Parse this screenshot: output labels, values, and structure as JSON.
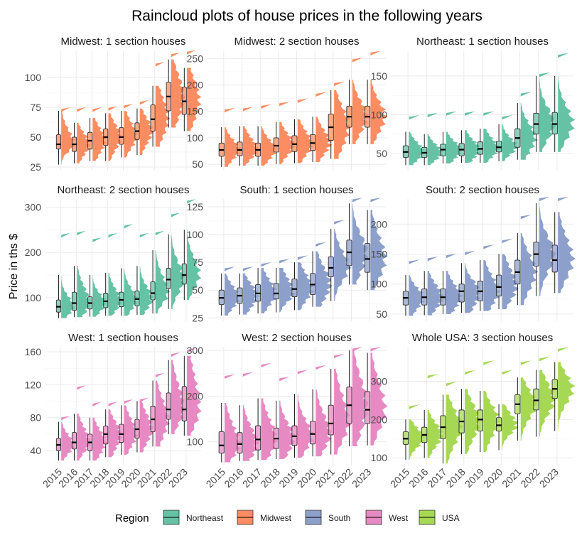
{
  "chart_data": {
    "type": "raincloud",
    "title": "Raincloud plots of house prices in the following years",
    "ylabel": "Price in ths $",
    "xlabel": "",
    "years": [
      "2015",
      "2016",
      "2017",
      "2018",
      "2019",
      "2020",
      "2021",
      "2022",
      "2023"
    ],
    "legend": {
      "title": "Region",
      "position": "bottom",
      "entries": [
        {
          "name": "Northeast",
          "color": "#66c2a5"
        },
        {
          "name": "Midwest",
          "color": "#fc8d62"
        },
        {
          "name": "South",
          "color": "#8da0cb"
        },
        {
          "name": "West",
          "color": "#e78ac3"
        },
        {
          "name": "USA",
          "color": "#a6d854"
        }
      ]
    },
    "panels": [
      {
        "title": "Midwest: 1 section houses",
        "region": "Midwest",
        "color": "#fc8d62",
        "ylim": [
          22,
          122
        ],
        "yticks": [
          25,
          50,
          75,
          100
        ],
        "boxes": [
          {
            "min": 27,
            "q1": 40,
            "median": 44,
            "q3": 52,
            "max": 72,
            "outlier": 72
          },
          {
            "min": 28,
            "q1": 38,
            "median": 44,
            "q3": 50,
            "max": 62,
            "outlier": 72
          },
          {
            "min": 30,
            "q1": 40,
            "median": 47,
            "q3": 54,
            "max": 66,
            "outlier": 72
          },
          {
            "min": 30,
            "q1": 43,
            "median": 50,
            "q3": 57,
            "max": 70,
            "outlier": 73
          },
          {
            "min": 33,
            "q1": 44,
            "median": 50,
            "q3": 58,
            "max": 72,
            "outlier": 75
          },
          {
            "min": 35,
            "q1": 48,
            "median": 55,
            "q3": 62,
            "max": 74,
            "outlier": 78
          },
          {
            "min": 42,
            "q1": 55,
            "median": 65,
            "q3": 77,
            "max": 93,
            "outlier": 110
          },
          {
            "min": 58,
            "q1": 72,
            "median": 84,
            "q3": 96,
            "max": 115,
            "outlier": 118
          },
          {
            "min": 55,
            "q1": 69,
            "median": 80,
            "q3": 92,
            "max": 108,
            "outlier": 120
          }
        ]
      },
      {
        "title": "Midwest: 2 section houses",
        "region": "Midwest",
        "color": "#fc8d62",
        "ylim": [
          38,
          264
        ],
        "yticks": [
          50,
          100,
          150,
          200,
          250
        ],
        "boxes": [
          {
            "min": 45,
            "q1": 65,
            "median": 77,
            "q3": 90,
            "max": 120,
            "outlier": 150
          },
          {
            "min": 47,
            "q1": 66,
            "median": 77,
            "q3": 92,
            "max": 122,
            "outlier": 152
          },
          {
            "min": 47,
            "q1": 65,
            "median": 77,
            "q3": 90,
            "max": 122,
            "outlier": 157
          },
          {
            "min": 50,
            "q1": 73,
            "median": 85,
            "q3": 100,
            "max": 130,
            "outlier": 162
          },
          {
            "min": 52,
            "q1": 74,
            "median": 88,
            "q3": 104,
            "max": 135,
            "outlier": 168
          },
          {
            "min": 54,
            "q1": 76,
            "median": 90,
            "q3": 106,
            "max": 140,
            "outlier": 180
          },
          {
            "min": 60,
            "q1": 95,
            "median": 120,
            "q3": 145,
            "max": 190,
            "outlier": 200
          },
          {
            "min": 88,
            "q1": 120,
            "median": 140,
            "q3": 160,
            "max": 210,
            "outlier": 245
          },
          {
            "min": 88,
            "q1": 120,
            "median": 140,
            "q3": 160,
            "max": 210,
            "outlier": 258
          }
        ]
      },
      {
        "title": "Northeast: 1 section houses",
        "region": "Northeast",
        "color": "#66c2a5",
        "ylim": [
          28,
          182
        ],
        "yticks": [
          50,
          100,
          150
        ],
        "boxes": [
          {
            "min": 35,
            "q1": 45,
            "median": 52,
            "q3": 60,
            "max": 78,
            "outlier": 95
          },
          {
            "min": 35,
            "q1": 45,
            "median": 51,
            "q3": 58,
            "max": 75,
            "outlier": 98
          },
          {
            "min": 37,
            "q1": 47,
            "median": 55,
            "q3": 62,
            "max": 78,
            "outlier": 100
          },
          {
            "min": 38,
            "q1": 47,
            "median": 55,
            "q3": 63,
            "max": 80,
            "outlier": 100
          },
          {
            "min": 38,
            "q1": 49,
            "median": 56,
            "q3": 65,
            "max": 82,
            "outlier": 100
          },
          {
            "min": 40,
            "q1": 52,
            "median": 58,
            "q3": 66,
            "max": 88,
            "outlier": 95
          },
          {
            "min": 42,
            "q1": 58,
            "median": 70,
            "q3": 82,
            "max": 115,
            "outlier": 125
          },
          {
            "min": 52,
            "q1": 75,
            "median": 88,
            "q3": 102,
            "max": 150,
            "outlier": 150
          },
          {
            "min": 52,
            "q1": 75,
            "median": 88,
            "q3": 103,
            "max": 150,
            "outlier": 175
          }
        ]
      },
      {
        "title": "Northeast: 2 section houses",
        "region": "Northeast",
        "color": "#66c2a5",
        "ylim": [
          48,
          318
        ],
        "yticks": [
          100,
          200,
          300
        ],
        "boxes": [
          {
            "min": 55,
            "q1": 68,
            "median": 80,
            "q3": 95,
            "max": 150,
            "outlier": 235
          },
          {
            "min": 57,
            "q1": 72,
            "median": 88,
            "q3": 112,
            "max": 170,
            "outlier": 240
          },
          {
            "min": 58,
            "q1": 75,
            "median": 88,
            "q3": 102,
            "max": 150,
            "outlier": 225
          },
          {
            "min": 60,
            "q1": 78,
            "median": 92,
            "q3": 110,
            "max": 155,
            "outlier": 235
          },
          {
            "min": 60,
            "q1": 80,
            "median": 95,
            "q3": 112,
            "max": 165,
            "outlier": 255
          },
          {
            "min": 62,
            "q1": 82,
            "median": 97,
            "q3": 115,
            "max": 170,
            "outlier": 235
          },
          {
            "min": 65,
            "q1": 95,
            "median": 110,
            "q3": 135,
            "max": 205,
            "outlier": 240
          },
          {
            "min": 75,
            "q1": 120,
            "median": 140,
            "q3": 165,
            "max": 240,
            "outlier": 280
          },
          {
            "min": 95,
            "q1": 130,
            "median": 150,
            "q3": 175,
            "max": 250,
            "outlier": 310
          }
        ]
      },
      {
        "title": "South: 1 section houses",
        "region": "South",
        "color": "#8da0cb",
        "ylim": [
          22,
          132
        ],
        "yticks": [
          25,
          50,
          75,
          100,
          125
        ],
        "boxes": [
          {
            "min": 27,
            "q1": 37,
            "median": 43,
            "q3": 50,
            "max": 65,
            "outlier": 68
          },
          {
            "min": 28,
            "q1": 38,
            "median": 45,
            "q3": 52,
            "max": 65,
            "outlier": 68
          },
          {
            "min": 29,
            "q1": 40,
            "median": 47,
            "q3": 55,
            "max": 70,
            "outlier": 72
          },
          {
            "min": 30,
            "q1": 42,
            "median": 47,
            "q3": 56,
            "max": 70,
            "outlier": 75
          },
          {
            "min": 32,
            "q1": 44,
            "median": 51,
            "q3": 60,
            "max": 75,
            "outlier": 78
          },
          {
            "min": 35,
            "q1": 46,
            "median": 55,
            "q3": 65,
            "max": 85,
            "outlier": 90
          },
          {
            "min": 40,
            "q1": 62,
            "median": 70,
            "q3": 80,
            "max": 105,
            "outlier": 110
          },
          {
            "min": 55,
            "q1": 72,
            "median": 84,
            "q3": 95,
            "max": 128,
            "outlier": 130
          },
          {
            "min": 50,
            "q1": 66,
            "median": 78,
            "q3": 92,
            "max": 122,
            "outlier": 130
          }
        ]
      },
      {
        "title": "South: 2 section houses",
        "region": "South",
        "color": "#8da0cb",
        "ylim": [
          38,
          242
        ],
        "yticks": [
          50,
          100,
          150,
          200
        ],
        "boxes": [
          {
            "min": 47,
            "q1": 65,
            "median": 77,
            "q3": 88,
            "max": 115,
            "outlier": 135
          },
          {
            "min": 48,
            "q1": 65,
            "median": 78,
            "q3": 92,
            "max": 122,
            "outlier": 140
          },
          {
            "min": 50,
            "q1": 65,
            "median": 78,
            "q3": 92,
            "max": 122,
            "outlier": 145
          },
          {
            "min": 52,
            "q1": 70,
            "median": 88,
            "q3": 100,
            "max": 135,
            "outlier": 150
          },
          {
            "min": 55,
            "q1": 72,
            "median": 88,
            "q3": 105,
            "max": 140,
            "outlier": 160
          },
          {
            "min": 58,
            "q1": 80,
            "median": 95,
            "q3": 115,
            "max": 150,
            "outlier": 170
          },
          {
            "min": 65,
            "q1": 100,
            "median": 120,
            "q3": 140,
            "max": 185,
            "outlier": 210
          },
          {
            "min": 80,
            "q1": 130,
            "median": 150,
            "q3": 170,
            "max": 235,
            "outlier": 240
          },
          {
            "min": 85,
            "q1": 120,
            "median": 140,
            "q3": 165,
            "max": 220,
            "outlier": 240
          }
        ]
      },
      {
        "title": "West: 1 section houses",
        "region": "West",
        "color": "#e78ac3",
        "ylim": [
          22,
          166
        ],
        "yticks": [
          40,
          80,
          120,
          160
        ],
        "boxes": [
          {
            "min": 28,
            "q1": 40,
            "median": 47,
            "q3": 55,
            "max": 75,
            "outlier": 78
          },
          {
            "min": 28,
            "q1": 42,
            "median": 50,
            "q3": 62,
            "max": 85,
            "outlier": 115
          },
          {
            "min": 28,
            "q1": 40,
            "median": 50,
            "q3": 60,
            "max": 80,
            "outlier": 95
          },
          {
            "min": 32,
            "q1": 48,
            "median": 60,
            "q3": 70,
            "max": 90,
            "outlier": 95
          },
          {
            "min": 35,
            "q1": 50,
            "median": 60,
            "q3": 72,
            "max": 95,
            "outlier": 98
          },
          {
            "min": 38,
            "q1": 55,
            "median": 66,
            "q3": 78,
            "max": 100,
            "outlier": 100
          },
          {
            "min": 45,
            "q1": 63,
            "median": 78,
            "q3": 94,
            "max": 125,
            "outlier": 130
          },
          {
            "min": 60,
            "q1": 78,
            "median": 90,
            "q3": 110,
            "max": 150,
            "outlier": 155
          },
          {
            "min": 58,
            "q1": 76,
            "median": 90,
            "q3": 118,
            "max": 155,
            "outlier": 160
          }
        ]
      },
      {
        "title": "West: 2 section houses",
        "region": "West",
        "color": "#e78ac3",
        "ylim": [
          48,
          308
        ],
        "yticks": [
          100,
          200,
          300
        ],
        "boxes": [
          {
            "min": 55,
            "q1": 75,
            "median": 92,
            "q3": 122,
            "max": 185,
            "outlier": 240
          },
          {
            "min": 58,
            "q1": 75,
            "median": 95,
            "q3": 120,
            "max": 180,
            "outlier": 245
          },
          {
            "min": 60,
            "q1": 82,
            "median": 105,
            "q3": 135,
            "max": 195,
            "outlier": 265
          },
          {
            "min": 62,
            "q1": 85,
            "median": 107,
            "q3": 130,
            "max": 190,
            "outlier": 235
          },
          {
            "min": 65,
            "q1": 92,
            "median": 112,
            "q3": 135,
            "max": 205,
            "outlier": 250
          },
          {
            "min": 68,
            "q1": 95,
            "median": 117,
            "q3": 145,
            "max": 215,
            "outlier": 260
          },
          {
            "min": 72,
            "q1": 115,
            "median": 140,
            "q3": 180,
            "max": 260,
            "outlier": 285
          },
          {
            "min": 90,
            "q1": 140,
            "median": 180,
            "q3": 220,
            "max": 300,
            "outlier": 300
          },
          {
            "min": 92,
            "q1": 140,
            "median": 170,
            "q3": 210,
            "max": 295,
            "outlier": 300
          }
        ]
      },
      {
        "title": "Whole USA: 3 section houses",
        "region": "USA",
        "color": "#a6d854",
        "ylim": [
          80,
          390
        ],
        "yticks": [
          100,
          200,
          300
        ],
        "boxes": [
          {
            "min": 95,
            "q1": 135,
            "median": 150,
            "q3": 168,
            "max": 200,
            "outlier": 230
          },
          {
            "min": 100,
            "q1": 140,
            "median": 160,
            "q3": 180,
            "max": 225,
            "outlier": 310
          },
          {
            "min": 85,
            "q1": 150,
            "median": 180,
            "q3": 210,
            "max": 265,
            "outlier": 290
          },
          {
            "min": 110,
            "q1": 165,
            "median": 195,
            "q3": 225,
            "max": 280,
            "outlier": 320
          },
          {
            "min": 115,
            "q1": 170,
            "median": 200,
            "q3": 225,
            "max": 275,
            "outlier": 345
          },
          {
            "min": 120,
            "q1": 170,
            "median": 185,
            "q3": 205,
            "max": 240,
            "outlier": 320
          },
          {
            "min": 145,
            "q1": 215,
            "median": 240,
            "q3": 265,
            "max": 310,
            "outlier": 345
          },
          {
            "min": 155,
            "q1": 225,
            "median": 250,
            "q3": 280,
            "max": 330,
            "outlier": 355
          },
          {
            "min": 170,
            "q1": 255,
            "median": 280,
            "q3": 305,
            "max": 350,
            "outlier": 380
          }
        ]
      }
    ]
  }
}
